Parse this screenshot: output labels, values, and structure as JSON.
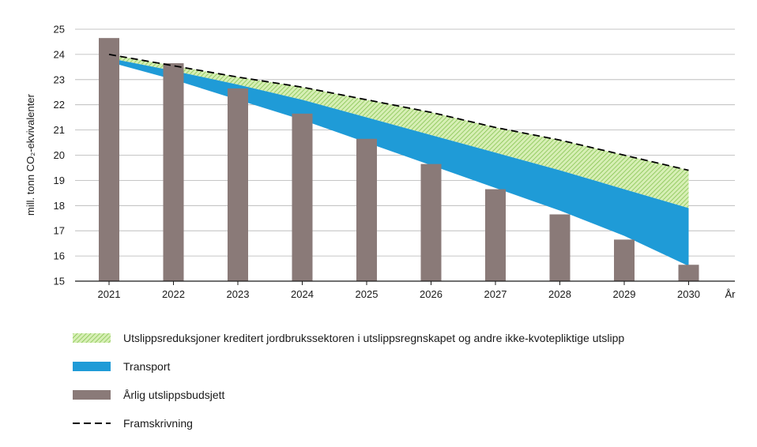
{
  "chart_data": {
    "type": "bar",
    "categories": [
      "2021",
      "2022",
      "2023",
      "2024",
      "2025",
      "2026",
      "2027",
      "2028",
      "2029",
      "2030"
    ],
    "x_axis_extra_label": "År",
    "ylabel": "mill. tonn CO₂-ekvivalenter",
    "ylim": [
      15,
      25
    ],
    "yticks": [
      "15",
      "16",
      "17",
      "18",
      "19",
      "20",
      "21",
      "22",
      "23",
      "24",
      "25"
    ],
    "grid": true,
    "legend_position": "bottom",
    "series": [
      {
        "name": "Årlig utslippsbudsjett",
        "kind": "bar",
        "color": "#8a7a78",
        "values": [
          24.65,
          23.65,
          22.65,
          21.65,
          20.65,
          19.65,
          18.65,
          17.65,
          16.65,
          15.65
        ]
      },
      {
        "name": "Framskrivning",
        "kind": "dashed-line",
        "color": "#000000",
        "values": [
          24.0,
          23.55,
          23.1,
          22.7,
          22.2,
          21.7,
          21.1,
          20.6,
          20.0,
          19.4
        ]
      },
      {
        "name": "Utslippsreduksjoner kreditert jordbrukssektoren i utslippsregnskapet og andre ikke-kvotepliktige utslipp",
        "kind": "area",
        "color": "#b9e08a",
        "values_lower": [
          23.85,
          23.35,
          22.8,
          22.2,
          21.5,
          20.8,
          20.1,
          19.4,
          18.65,
          17.9
        ],
        "values_upper": [
          24.0,
          23.55,
          23.1,
          22.7,
          22.2,
          21.7,
          21.1,
          20.6,
          20.0,
          19.4
        ]
      },
      {
        "name": "Transport",
        "kind": "area",
        "color": "#1f9bd7",
        "values_lower": [
          23.7,
          23.0,
          22.2,
          21.4,
          20.5,
          19.6,
          18.7,
          17.8,
          16.8,
          15.6
        ],
        "values_upper": [
          23.85,
          23.35,
          22.8,
          22.2,
          21.5,
          20.8,
          20.1,
          19.4,
          18.65,
          17.9
        ]
      }
    ]
  },
  "legend": [
    {
      "label": "Utslippsreduksjoner kreditert jordbrukssektoren i utslippsregnskapet og andre ikke-kvotepliktige utslipp",
      "swatch": "hatch-green"
    },
    {
      "label": "Transport",
      "swatch": "blue"
    },
    {
      "label": "Årlig utslippsbudsjett",
      "swatch": "grey"
    },
    {
      "label": "Framskrivning",
      "swatch": "dashed"
    }
  ]
}
